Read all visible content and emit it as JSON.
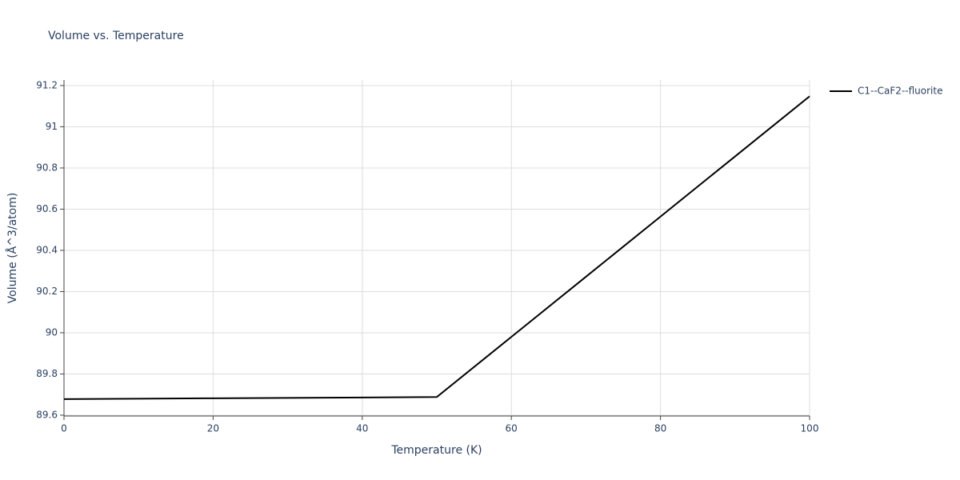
{
  "chart_data": {
    "type": "line",
    "title": "Volume vs. Temperature",
    "x_label": "Temperature (K)",
    "y_label": "Volume (Å^3/atom)",
    "x": [
      0,
      10,
      20,
      30,
      40,
      50,
      60,
      70,
      80,
      90,
      100
    ],
    "series": [
      {
        "name": "C1--CaF2--fluorite",
        "color": "#000000",
        "values": [
          89.678,
          89.68,
          89.682,
          89.684,
          89.686,
          89.688,
          89.98,
          90.272,
          90.564,
          90.856,
          91.148
        ]
      }
    ],
    "xlim": [
      0,
      100
    ],
    "xticks": [
      0,
      20,
      40,
      60,
      80,
      100
    ],
    "ylim": [
      89.596,
      91.227
    ],
    "yticks": [
      89.6,
      89.8,
      90,
      90.2,
      90.4,
      90.6,
      90.8,
      91,
      91.2
    ],
    "grid": true,
    "legend": "right"
  }
}
